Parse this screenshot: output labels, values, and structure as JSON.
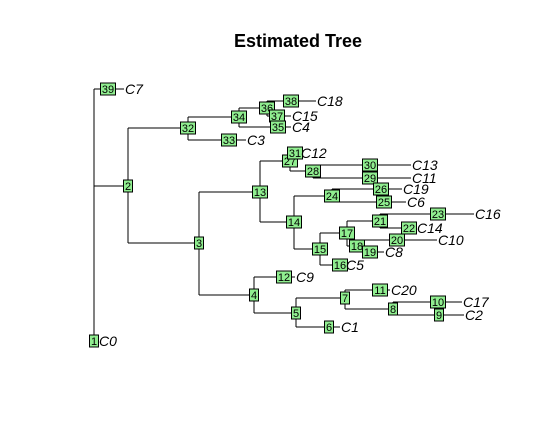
{
  "title": "Estimated Tree",
  "nodes": [
    {
      "id": "39",
      "label": "C7"
    },
    {
      "id": "2",
      "label": ""
    },
    {
      "id": "32",
      "label": ""
    },
    {
      "id": "34",
      "label": ""
    },
    {
      "id": "36",
      "label": ""
    },
    {
      "id": "38",
      "label": "C18"
    },
    {
      "id": "37",
      "label": "C15"
    },
    {
      "id": "35",
      "label": "C4"
    },
    {
      "id": "33",
      "label": "C3"
    },
    {
      "id": "3",
      "label": ""
    },
    {
      "id": "13",
      "label": ""
    },
    {
      "id": "27",
      "label": ""
    },
    {
      "id": "31",
      "label": "C12"
    },
    {
      "id": "28",
      "label": ""
    },
    {
      "id": "30",
      "label": "C13"
    },
    {
      "id": "29",
      "label": "C11"
    },
    {
      "id": "14",
      "label": ""
    },
    {
      "id": "24",
      "label": ""
    },
    {
      "id": "26",
      "label": "C19"
    },
    {
      "id": "25",
      "label": "C6"
    },
    {
      "id": "15",
      "label": ""
    },
    {
      "id": "17",
      "label": ""
    },
    {
      "id": "21",
      "label": ""
    },
    {
      "id": "23",
      "label": "C16"
    },
    {
      "id": "22",
      "label": "C14"
    },
    {
      "id": "18",
      "label": ""
    },
    {
      "id": "20",
      "label": "C10"
    },
    {
      "id": "19",
      "label": "C8"
    },
    {
      "id": "16",
      "label": "C5"
    },
    {
      "id": "4",
      "label": ""
    },
    {
      "id": "12",
      "label": "C9"
    },
    {
      "id": "5",
      "label": ""
    },
    {
      "id": "7",
      "label": ""
    },
    {
      "id": "11",
      "label": "C20"
    },
    {
      "id": "8",
      "label": ""
    },
    {
      "id": "10",
      "label": "C17"
    },
    {
      "id": "9",
      "label": "C2"
    },
    {
      "id": "6",
      "label": "C1"
    },
    {
      "id": "1",
      "label": "C0"
    }
  ]
}
